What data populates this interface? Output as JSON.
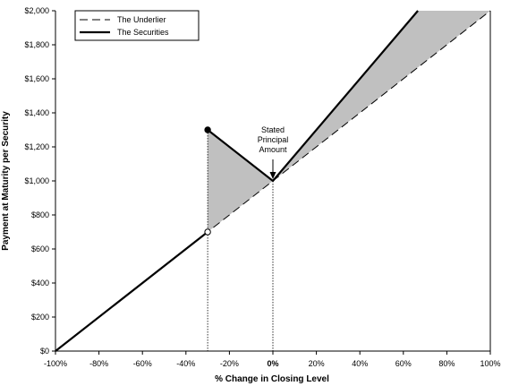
{
  "chart_data": {
    "type": "line",
    "xlabel": "% Change in Closing Level",
    "ylabel": "Payment at Maturity per Security",
    "xlim": [
      -100,
      100
    ],
    "ylim": [
      0,
      2000
    ],
    "x_ticks": [
      -100,
      -80,
      -60,
      -40,
      -20,
      0,
      20,
      40,
      60,
      80,
      100
    ],
    "x_tick_labels": [
      "-100%",
      "-80%",
      "-60%",
      "-40%",
      "-20%",
      "0%",
      "20%",
      "40%",
      "60%",
      "80%",
      "100%"
    ],
    "y_ticks": [
      0,
      200,
      400,
      600,
      800,
      1000,
      1200,
      1400,
      1600,
      1800,
      2000
    ],
    "y_tick_labels": [
      "$0",
      "$200",
      "$400",
      "$600",
      "$800",
      "$1,000",
      "$1,200",
      "$1,400",
      "$1,600",
      "$1,800",
      "$2,000"
    ],
    "legend_position": "top-left",
    "series": [
      {
        "name": "The Underlier",
        "style": "dashed",
        "x": [
          -100,
          100
        ],
        "y": [
          0,
          2000
        ]
      },
      {
        "name": "The Securities",
        "style": "solid",
        "segments": [
          {
            "x": [
              -100,
              -30
            ],
            "y": [
              0,
              700
            ]
          },
          {
            "x": [
              -30,
              0,
              66.7
            ],
            "y": [
              1300,
              1000,
              2000
            ]
          }
        ]
      }
    ],
    "markers": [
      {
        "x": -30,
        "y": 1300,
        "kind": "filled"
      },
      {
        "x": -30,
        "y": 700,
        "kind": "open"
      }
    ],
    "reference_lines": [
      {
        "x": -30,
        "style": "dotted"
      },
      {
        "x": 0,
        "style": "dotted"
      }
    ],
    "annotations": [
      {
        "lines": [
          "Stated",
          "Principal",
          "Amount"
        ],
        "x": 0,
        "y": 1000,
        "arrow": true
      }
    ],
    "colors": {
      "shade": "#c0c0c0",
      "line": "#000000"
    }
  }
}
